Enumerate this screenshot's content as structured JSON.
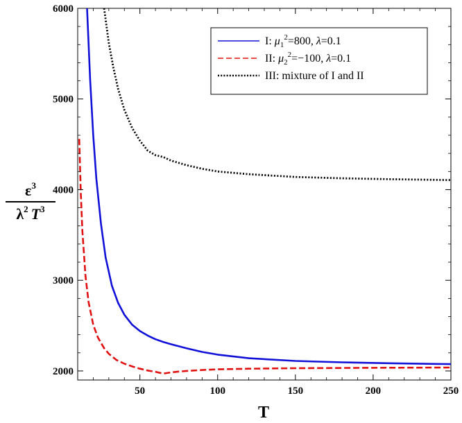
{
  "chart_data": {
    "type": "line",
    "xlabel": "T",
    "ylabel": {
      "numerator": "ε",
      "numerator_exp": "3",
      "denominator_lambda": "λ",
      "denominator_lambda_exp": "2",
      "denominator_T": "T",
      "denominator_T_exp": "3"
    },
    "xlim": [
      10,
      250
    ],
    "ylim": [
      1900,
      6000
    ],
    "x_ticks": [
      50,
      100,
      150,
      200,
      250
    ],
    "y_ticks": [
      2000,
      3000,
      4000,
      5000,
      6000
    ],
    "legend_position": "top-right",
    "series": [
      {
        "name": "I: μ₁²=800, λ=0.1",
        "legend": {
          "prefix": "I: ",
          "mu": "μ",
          "sub": "1",
          "sup": "2",
          "rest": "=800, ",
          "lam": "λ",
          "tail": "=0.1"
        },
        "color": "#1010d8",
        "style": "solid",
        "x": [
          16,
          18,
          20,
          22,
          25,
          28,
          32,
          36,
          40,
          45,
          50,
          55,
          60,
          65,
          70,
          80,
          90,
          100,
          120,
          150,
          180,
          210,
          250
        ],
        "y": [
          6000,
          5220,
          4600,
          4120,
          3620,
          3250,
          2940,
          2750,
          2620,
          2510,
          2440,
          2390,
          2350,
          2320,
          2295,
          2250,
          2210,
          2180,
          2140,
          2110,
          2095,
          2085,
          2075
        ]
      },
      {
        "name": "II: μ₂²=−100, λ=0.1",
        "legend": {
          "prefix": "II: ",
          "mu": "μ",
          "sub": "2",
          "sup": "2",
          "rest": "=−100, ",
          "lam": "λ",
          "tail": "=0.1"
        },
        "color": "#e01010",
        "style": "dashed",
        "x": [
          11,
          12,
          13,
          15,
          17,
          20,
          23,
          27,
          30,
          35,
          40,
          45,
          50,
          55,
          60,
          65,
          70,
          80,
          90,
          100,
          120,
          150,
          200,
          250
        ],
        "y": [
          4560,
          3960,
          3550,
          3050,
          2760,
          2510,
          2370,
          2250,
          2190,
          2120,
          2080,
          2050,
          2025,
          2005,
          1990,
          1970,
          1985,
          2000,
          2010,
          2018,
          2025,
          2030,
          2035,
          2038
        ]
      },
      {
        "name": "III: mixture of I and II",
        "legend": {
          "prefix": "III: mixture of I and II"
        },
        "color": "#000000",
        "style": "dotted",
        "x": [
          27,
          30,
          33,
          36,
          40,
          45,
          50,
          55,
          60,
          65,
          70,
          80,
          90,
          100,
          120,
          150,
          180,
          210,
          250
        ],
        "y": [
          6000,
          5620,
          5340,
          5110,
          4880,
          4680,
          4540,
          4430,
          4380,
          4360,
          4320,
          4270,
          4230,
          4200,
          4170,
          4140,
          4125,
          4115,
          4105
        ]
      }
    ]
  }
}
